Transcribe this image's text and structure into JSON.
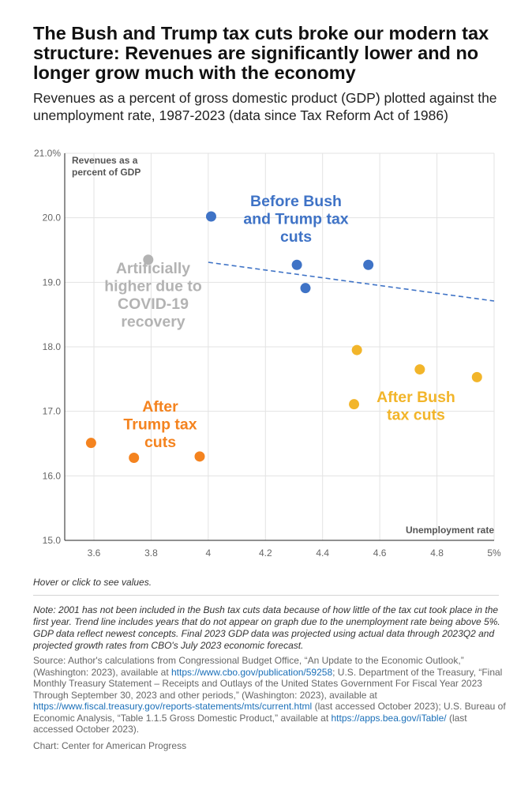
{
  "title": "The Bush and Trump tax cuts broke our modern tax structure: Revenues are significantly lower and no longer grow much with the economy",
  "subtitle": "Revenues as a percent of gross domestic product (GDP) plotted against the unemployment rate, 1987-2023 (data since Tax Reform Act of 1986)",
  "hover_note": "Hover or click to see values.",
  "note": "Note: 2001 has not been included in the Bush tax cuts data because of how little of the tax cut took place in the first year. Trend line includes years that do not appear on graph due to the unemployment rate being above 5%. GDP data reflect newest concepts. Final 2023 GDP data was projected using actual data through 2023Q2 and projected growth rates from CBO's July 2023 economic forecast.",
  "source": {
    "part1": "Source: Author's calculations from Congressional Budget Office, “An Update to the Economic Outlook,” (Washington: 2023), available at ",
    "link1": "https://www.cbo.gov/publication/59258",
    "part2": "; U.S. Department of the Treasury, “Final Monthly Treasury Statement – Receipts and Outlays of the United States Government For Fiscal Year 2023 Through September 30, 2023 and other periods,” (Washington: 2023), available at ",
    "link2": "https://www.fiscal.treasury.gov/reports-statements/mts/current.html",
    "part3": " (last accessed October 2023); U.S. Bureau of Economic Analysis, “Table 1.1.5 Gross Domestic Product,” available at ",
    "link3": "https://apps.bea.gov/iTable/",
    "part4": " (last accessed October 2023)."
  },
  "credit": "Chart: Center for American Progress",
  "chart_data": {
    "type": "scatter",
    "xlabel": "Unemployment rate",
    "ylabel": "Revenues as a percent of GDP",
    "xlim": [
      3.5,
      5.0
    ],
    "ylim": [
      15.0,
      21.0
    ],
    "xticks": [
      3.6,
      3.8,
      4.0,
      4.2,
      4.4,
      4.6,
      4.8,
      5.0
    ],
    "xtick_labels": [
      "3.6",
      "3.8",
      "4",
      "4.2",
      "4.4",
      "4.6",
      "4.8",
      "5%"
    ],
    "yticks": [
      15.0,
      16.0,
      17.0,
      18.0,
      19.0,
      20.0,
      21.0
    ],
    "ytick_labels": [
      "15.0",
      "16.0",
      "17.0",
      "18.0",
      "19.0",
      "20.0",
      "21.0%"
    ],
    "series": [
      {
        "name": "Before Bush and Trump tax cuts",
        "label_lines": [
          "Before Bush",
          "and Trump tax",
          "cuts"
        ],
        "color": "#3f73c6",
        "points": [
          [
            4.01,
            20.02
          ],
          [
            4.31,
            19.27
          ],
          [
            4.56,
            19.27
          ],
          [
            4.34,
            18.91
          ]
        ]
      },
      {
        "name": "After Bush tax cuts",
        "label_lines": [
          "After Bush",
          "tax cuts"
        ],
        "color": "#f2b52a",
        "points": [
          [
            4.52,
            17.95
          ],
          [
            4.74,
            17.65
          ],
          [
            4.94,
            17.53
          ],
          [
            4.51,
            17.11
          ]
        ]
      },
      {
        "name": "After Trump tax cuts",
        "label_lines": [
          "After",
          "Trump tax",
          "cuts"
        ],
        "color": "#f4831f",
        "points": [
          [
            3.59,
            16.51
          ],
          [
            3.74,
            16.28
          ],
          [
            3.97,
            16.3
          ]
        ]
      },
      {
        "name": "Artificially higher due to COVID-19 recovery",
        "label_lines": [
          "Artificially",
          "higher due to",
          "COVID-19",
          "recovery"
        ],
        "color": "#b3b3b3",
        "points": [
          [
            3.79,
            19.35
          ]
        ]
      }
    ],
    "trendline": {
      "color": "#3f73c6",
      "from": [
        4.0,
        19.31
      ],
      "to": [
        5.0,
        18.71
      ]
    }
  }
}
